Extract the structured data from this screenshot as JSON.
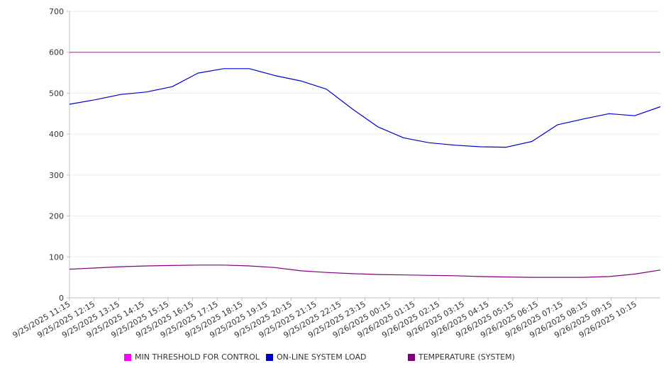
{
  "chart_data": {
    "type": "line",
    "ylim": [
      0,
      700
    ],
    "y_ticks": [
      "0",
      "100",
      "200",
      "300",
      "400",
      "500",
      "600",
      "700"
    ],
    "x_ticks": [
      "9/25/2025 11:15",
      "9/25/2025 12:15",
      "9/25/2025 13:15",
      "9/25/2025 14:15",
      "9/25/2025 15:15",
      "9/25/2025 16:15",
      "9/25/2025 17:15",
      "9/25/2025 18:15",
      "9/25/2025 19:15",
      "9/25/2025 20:15",
      "9/25/2025 21:15",
      "9/25/2025 22:15",
      "9/25/2025 23:15",
      "9/26/2025 00:15",
      "9/26/2025 01:15",
      "9/26/2025 02:15",
      "9/26/2025 03:15",
      "9/26/2025 04:15",
      "9/26/2025 05:15",
      "9/26/2025 06:15",
      "9/26/2025 07:15",
      "9/26/2025 08:15",
      "9/26/2025 09:15",
      "9/26/2025 10:15"
    ],
    "grid": true,
    "legend_position": "bottom",
    "series": [
      {
        "name": "MIN THRESHOLD FOR CONTROL",
        "color": "#ff00ff",
        "values": [
          600,
          600,
          600,
          600,
          600,
          600,
          600,
          600,
          600,
          600,
          600,
          600,
          600,
          600,
          600,
          600,
          600,
          600,
          600,
          600,
          600,
          600,
          600,
          600
        ]
      },
      {
        "name": "ON-LINE SYSTEM LOAD",
        "color": "#0000cc",
        "values": [
          473,
          484,
          497,
          503,
          516,
          549,
          560,
          560,
          543,
          530,
          510,
          462,
          418,
          391,
          379,
          373,
          369,
          368,
          382,
          423,
          437,
          450,
          445,
          467
        ]
      },
      {
        "name": "TEMPERATURE (SYSTEM)",
        "color": "#800080",
        "values": [
          70,
          73,
          76,
          78,
          79,
          80,
          80,
          78,
          74,
          66,
          62,
          59,
          57,
          56,
          55,
          54,
          52,
          51,
          50,
          50,
          50,
          52,
          58,
          68
        ]
      }
    ]
  }
}
